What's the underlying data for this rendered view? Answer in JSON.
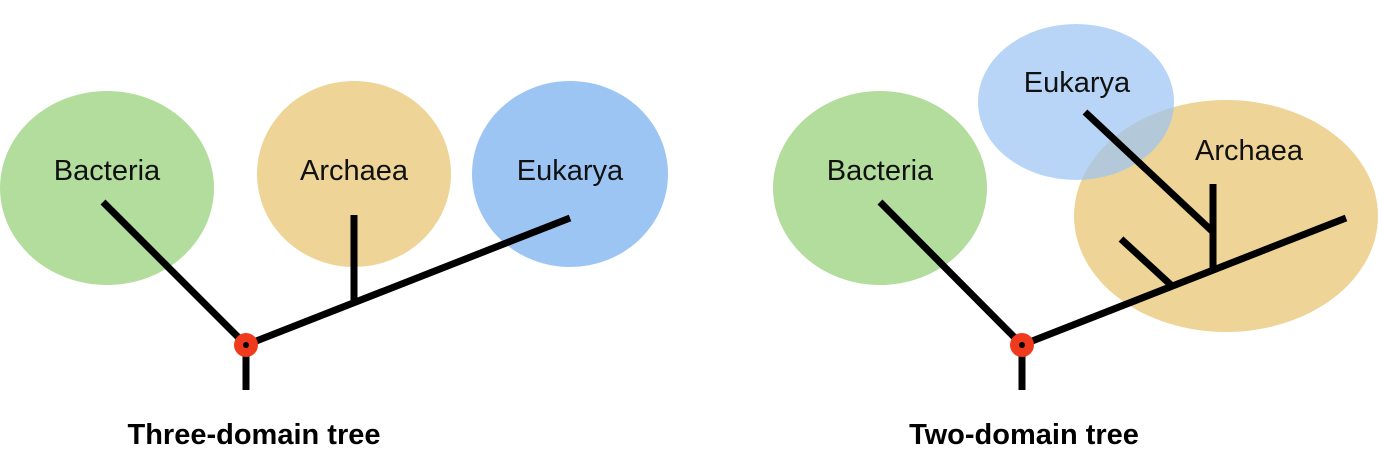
{
  "colors": {
    "bacteria": "#b3dd9c",
    "archaea": "#eed597",
    "eukarya": "#9dc5f4",
    "root_marker": "#f03a1e",
    "branch": "#000000"
  },
  "three_domain": {
    "title": "Three-domain tree",
    "domains": [
      {
        "key": "bacteria",
        "label": "Bacteria"
      },
      {
        "key": "archaea",
        "label": "Archaea"
      },
      {
        "key": "eukarya",
        "label": "Eukarya"
      }
    ]
  },
  "two_domain": {
    "title": "Two-domain tree",
    "domains": [
      {
        "key": "bacteria",
        "label": "Bacteria"
      },
      {
        "key": "eukarya",
        "label": "Eukarya"
      },
      {
        "key": "archaea",
        "label": "Archaea"
      }
    ]
  }
}
